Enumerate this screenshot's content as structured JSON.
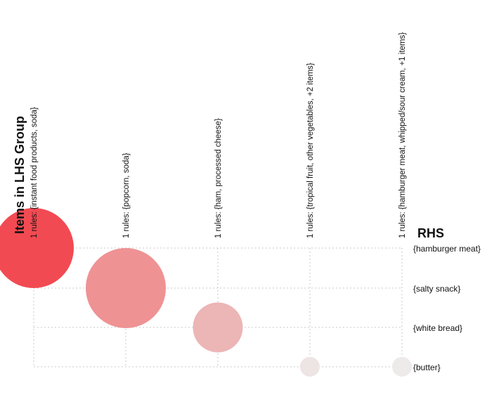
{
  "chart_data": {
    "type": "scatter",
    "xlabel": "Items in LHS Group",
    "ylabel": "RHS",
    "grid": true,
    "legend": "none",
    "columns": [
      "1 rules: {instant food products, soda}",
      "1 rules: {popcorn, soda}",
      "1 rules: {ham, processed cheese}",
      "1 rules: {tropical fruit, other vegetables, +2 items}",
      "1 rules: {hamburger meat, whipped/sour cream, +1 items}"
    ],
    "rows": [
      "{hamburger meat}",
      "{salty snack}",
      "{white bread}",
      "{butter}"
    ],
    "points": [
      {
        "col": 0,
        "row": 0,
        "size": 0.0061,
        "lift": 19.0,
        "color": "#f24a52"
      },
      {
        "col": 1,
        "row": 1,
        "size": 0.0061,
        "lift": 16.0,
        "color": "#ef9294"
      },
      {
        "col": 2,
        "row": 2,
        "size": 0.0038,
        "lift": 15.0,
        "color": "#ecb5b6"
      },
      {
        "col": 3,
        "row": 3,
        "size": 0.0015,
        "lift": 11.0,
        "color": "#ede4e4"
      },
      {
        "col": 4,
        "row": 3,
        "size": 0.0015,
        "lift": 10.5,
        "color": "#eeeaea"
      }
    ]
  }
}
